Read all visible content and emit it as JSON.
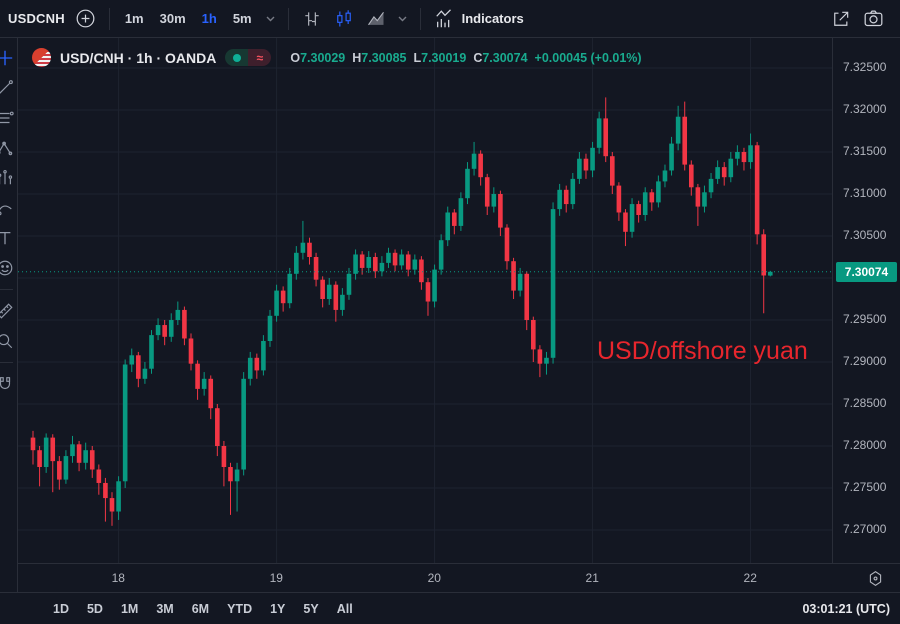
{
  "palette": {
    "background": "#131722",
    "up": "#089981",
    "down": "#f23645",
    "accent_blue": "#2962ff",
    "annotation_red": "#e8262d",
    "axis_text": "#b2b5be",
    "grid": "#1e2330"
  },
  "top_toolbar": {
    "symbol": "USDCNH",
    "timeframes": [
      {
        "label": "1m",
        "active": false
      },
      {
        "label": "30m",
        "active": false
      },
      {
        "label": "1h",
        "active": true
      },
      {
        "label": "5m",
        "active": false
      }
    ],
    "indicators_label": "Indicators"
  },
  "sidebar": {
    "tools": [
      "crosshair",
      "trendline",
      "fib-retracement",
      "pattern",
      "forecast",
      "brush",
      "text",
      "emoji",
      "measure",
      "zoom-in",
      "magnet"
    ]
  },
  "legend": {
    "title": "USD/CNH · 1h · OANDA",
    "ohlc": {
      "o_label": "O",
      "o": "7.30029",
      "h_label": "H",
      "h": "7.30085",
      "l_label": "L",
      "l": "7.30019",
      "c_label": "C",
      "c": "7.30074"
    },
    "change": "+0.00045 (+0.01%)"
  },
  "annotation": {
    "text": "USD/offshore yuan",
    "color": "#e8262d"
  },
  "price_label": {
    "value": "7.30074"
  },
  "footer": {
    "ranges": [
      "1D",
      "5D",
      "1M",
      "3M",
      "6M",
      "YTD",
      "1Y",
      "5Y",
      "All"
    ],
    "clock": "03:01:21 (UTC)"
  },
  "chart_data": {
    "type": "candlestick",
    "symbol": "USD/CNH",
    "interval": "1h",
    "venue": "OANDA",
    "last_price": 7.30074,
    "last_change": "+0.00045 (+0.01%)",
    "price_ticks": [
      "7.32500",
      "7.32000",
      "7.31500",
      "7.31000",
      "7.30500",
      "7.30000",
      "7.29500",
      "7.29000",
      "7.28500",
      "7.28000",
      "7.27500",
      "7.27000"
    ],
    "time_ticks": [
      {
        "label": "18",
        "index": 13
      },
      {
        "label": "19",
        "index": 37
      },
      {
        "label": "20",
        "index": 61
      },
      {
        "label": "21",
        "index": 85
      },
      {
        "label": "22",
        "index": 109
      }
    ],
    "up_color": "#089981",
    "down_color": "#f23645",
    "candles": [
      [
        7.281,
        7.2818,
        7.2778,
        7.2795
      ],
      [
        7.2795,
        7.28,
        7.2752,
        7.2775
      ],
      [
        7.2775,
        7.2815,
        7.2768,
        7.281
      ],
      [
        7.281,
        7.2814,
        7.2745,
        7.2782
      ],
      [
        7.2782,
        7.2788,
        7.2748,
        7.276
      ],
      [
        7.276,
        7.2795,
        7.2755,
        7.2788
      ],
      [
        7.2788,
        7.2812,
        7.278,
        7.2802
      ],
      [
        7.2802,
        7.2806,
        7.277,
        7.278
      ],
      [
        7.278,
        7.2804,
        7.2772,
        7.2795
      ],
      [
        7.2795,
        7.28,
        7.2762,
        7.2772
      ],
      [
        7.2772,
        7.2778,
        7.2742,
        7.2756
      ],
      [
        7.2756,
        7.2762,
        7.271,
        7.2738
      ],
      [
        7.2738,
        7.2745,
        7.2705,
        7.2722
      ],
      [
        7.2722,
        7.2764,
        7.2712,
        7.2758
      ],
      [
        7.2758,
        7.2903,
        7.275,
        7.2897
      ],
      [
        7.2897,
        7.2916,
        7.2888,
        7.2908
      ],
      [
        7.2908,
        7.2912,
        7.287,
        7.288
      ],
      [
        7.288,
        7.29,
        7.2874,
        7.2892
      ],
      [
        7.2892,
        7.2938,
        7.2886,
        7.2932
      ],
      [
        7.2932,
        7.2952,
        7.2926,
        7.2944
      ],
      [
        7.2944,
        7.295,
        7.292,
        7.293
      ],
      [
        7.293,
        7.2958,
        7.2924,
        7.295
      ],
      [
        7.295,
        7.2972,
        7.2944,
        7.2962
      ],
      [
        7.2962,
        7.2966,
        7.292,
        7.2928
      ],
      [
        7.2928,
        7.2934,
        7.289,
        7.2898
      ],
      [
        7.2898,
        7.2902,
        7.2855,
        7.2868
      ],
      [
        7.2868,
        7.2888,
        7.286,
        7.288
      ],
      [
        7.288,
        7.2884,
        7.2832,
        7.2845
      ],
      [
        7.2845,
        7.285,
        7.2788,
        7.28
      ],
      [
        7.28,
        7.2806,
        7.2752,
        7.2775
      ],
      [
        7.2775,
        7.278,
        7.2718,
        7.2758
      ],
      [
        7.2758,
        7.278,
        7.2722,
        7.2772
      ],
      [
        7.2772,
        7.2888,
        7.2765,
        7.288
      ],
      [
        7.288,
        7.2912,
        7.2872,
        7.2905
      ],
      [
        7.2905,
        7.291,
        7.288,
        7.289
      ],
      [
        7.289,
        7.2932,
        7.2884,
        7.2925
      ],
      [
        7.2925,
        7.2962,
        7.2918,
        7.2955
      ],
      [
        7.2955,
        7.2992,
        7.2948,
        7.2985
      ],
      [
        7.2985,
        7.299,
        7.296,
        7.297
      ],
      [
        7.297,
        7.3012,
        7.2964,
        7.3005
      ],
      [
        7.3005,
        7.3038,
        7.2998,
        7.303
      ],
      [
        7.303,
        7.3068,
        7.3022,
        7.3042
      ],
      [
        7.3042,
        7.3048,
        7.3016,
        7.3025
      ],
      [
        7.3025,
        7.303,
        7.299,
        7.2998
      ],
      [
        7.2998,
        7.3002,
        7.2965,
        7.2975
      ],
      [
        7.2975,
        7.3,
        7.2968,
        7.2992
      ],
      [
        7.2992,
        7.2996,
        7.2948,
        7.2962
      ],
      [
        7.2962,
        7.2988,
        7.2955,
        7.298
      ],
      [
        7.298,
        7.3012,
        7.2974,
        7.3005
      ],
      [
        7.3005,
        7.3034,
        7.2998,
        7.3028
      ],
      [
        7.3028,
        7.3032,
        7.3004,
        7.3012
      ],
      [
        7.3012,
        7.3032,
        7.3006,
        7.3025
      ],
      [
        7.3025,
        7.303,
        7.3,
        7.3008
      ],
      [
        7.3008,
        7.3026,
        7.3002,
        7.3018
      ],
      [
        7.3018,
        7.3036,
        7.3012,
        7.303
      ],
      [
        7.303,
        7.3034,
        7.3008,
        7.3015
      ],
      [
        7.3015,
        7.3034,
        7.301,
        7.3028
      ],
      [
        7.3028,
        7.3032,
        7.3002,
        7.301
      ],
      [
        7.301,
        7.3028,
        7.3004,
        7.3022
      ],
      [
        7.3022,
        7.3026,
        7.2986,
        7.2995
      ],
      [
        7.2995,
        7.3,
        7.2955,
        7.2972
      ],
      [
        7.2972,
        7.3016,
        7.2965,
        7.301
      ],
      [
        7.301,
        7.3052,
        7.3004,
        7.3045
      ],
      [
        7.3045,
        7.3085,
        7.3038,
        7.3078
      ],
      [
        7.3078,
        7.3082,
        7.3052,
        7.3062
      ],
      [
        7.3062,
        7.3102,
        7.3056,
        7.3095
      ],
      [
        7.3095,
        7.3138,
        7.3088,
        7.313
      ],
      [
        7.313,
        7.3162,
        7.3122,
        7.3148
      ],
      [
        7.3148,
        7.3152,
        7.311,
        7.312
      ],
      [
        7.312,
        7.3124,
        7.3075,
        7.3085
      ],
      [
        7.3085,
        7.3108,
        7.3078,
        7.31
      ],
      [
        7.31,
        7.3104,
        7.305,
        7.306
      ],
      [
        7.306,
        7.3064,
        7.301,
        7.302
      ],
      [
        7.302,
        7.3024,
        7.2975,
        7.2985
      ],
      [
        7.2985,
        7.3012,
        7.2978,
        7.3005
      ],
      [
        7.3005,
        7.3008,
        7.2938,
        7.295
      ],
      [
        7.295,
        7.2954,
        7.29,
        7.2915
      ],
      [
        7.2915,
        7.292,
        7.2882,
        7.2898
      ],
      [
        7.2898,
        7.2912,
        7.2885,
        7.2905
      ],
      [
        7.2905,
        7.309,
        7.2898,
        7.3082
      ],
      [
        7.3082,
        7.3112,
        7.3074,
        7.3105
      ],
      [
        7.3105,
        7.311,
        7.3078,
        7.3088
      ],
      [
        7.3088,
        7.3125,
        7.3082,
        7.3118
      ],
      [
        7.3118,
        7.315,
        7.3112,
        7.3142
      ],
      [
        7.3142,
        7.3148,
        7.3118,
        7.3128
      ],
      [
        7.3128,
        7.3162,
        7.312,
        7.3155
      ],
      [
        7.3155,
        7.3198,
        7.3148,
        7.319
      ],
      [
        7.319,
        7.3215,
        7.3138,
        7.3145
      ],
      [
        7.3145,
        7.315,
        7.31,
        7.311
      ],
      [
        7.311,
        7.3114,
        7.3068,
        7.3078
      ],
      [
        7.3078,
        7.3082,
        7.3038,
        7.3055
      ],
      [
        7.3055,
        7.3095,
        7.3048,
        7.3088
      ],
      [
        7.3088,
        7.3092,
        7.3066,
        7.3075
      ],
      [
        7.3075,
        7.3108,
        7.3068,
        7.3102
      ],
      [
        7.3102,
        7.3106,
        7.308,
        7.309
      ],
      [
        7.309,
        7.3122,
        7.3084,
        7.3115
      ],
      [
        7.3115,
        7.3135,
        7.3108,
        7.3128
      ],
      [
        7.3128,
        7.3168,
        7.3122,
        7.316
      ],
      [
        7.316,
        7.3205,
        7.3152,
        7.3192
      ],
      [
        7.3192,
        7.321,
        7.3128,
        7.3135
      ],
      [
        7.3135,
        7.314,
        7.3098,
        7.3108
      ],
      [
        7.3108,
        7.3112,
        7.3062,
        7.3085
      ],
      [
        7.3085,
        7.311,
        7.3078,
        7.3102
      ],
      [
        7.3102,
        7.3125,
        7.3095,
        7.3118
      ],
      [
        7.3118,
        7.314,
        7.3112,
        7.3132
      ],
      [
        7.3132,
        7.3138,
        7.311,
        7.312
      ],
      [
        7.312,
        7.315,
        7.3114,
        7.3142
      ],
      [
        7.3142,
        7.3158,
        7.3134,
        7.315
      ],
      [
        7.315,
        7.3155,
        7.3128,
        7.3138
      ],
      [
        7.3138,
        7.3172,
        7.313,
        7.3158
      ],
      [
        7.3158,
        7.3162,
        7.304,
        7.3052
      ],
      [
        7.3052,
        7.3058,
        7.2958,
        7.3003
      ],
      [
        7.30029,
        7.30085,
        7.30019,
        7.30074
      ]
    ]
  }
}
